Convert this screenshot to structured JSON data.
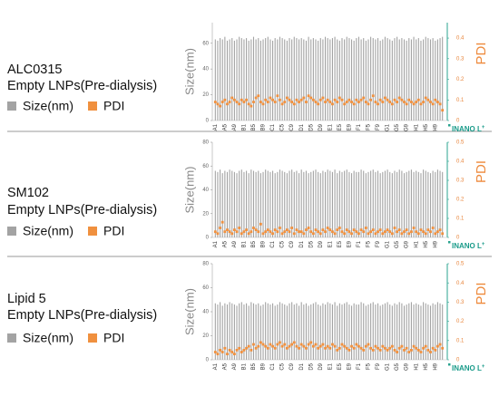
{
  "charts": [
    {
      "type": "bar",
      "title": "ALC0315",
      "subtitle": "Empty LNPs(Pre-dialysis)",
      "y_label": "Size(nm)",
      "y2_label": "PDI",
      "logo": "INANO L",
      "logo_sup": "+",
      "categories": [
        "A1",
        null,
        null,
        null,
        "A5",
        null,
        null,
        null,
        "A9",
        null,
        null,
        null,
        "B1",
        null,
        null,
        null,
        "B5",
        null,
        null,
        null,
        "B9",
        null,
        null,
        null,
        "C1",
        null,
        null,
        null,
        "C5",
        null,
        null,
        null,
        "C9",
        null,
        null,
        null,
        "D1",
        null,
        null,
        null,
        "D5",
        null,
        null,
        null,
        "D9",
        null,
        null,
        null,
        "E1",
        null,
        null,
        null,
        "E5",
        null,
        null,
        null,
        "E9",
        null,
        null,
        null,
        "F1",
        null,
        null,
        null,
        "F5",
        null,
        null,
        null,
        "F9",
        null,
        null,
        null,
        "G1",
        null,
        null,
        null,
        "G5",
        null,
        null,
        null,
        "G9",
        null,
        null,
        null,
        "H1",
        null,
        null,
        null,
        "H5",
        null,
        null,
        null,
        "H9",
        null,
        null,
        null
      ],
      "ylim": [
        0,
        76
      ],
      "yticks": [
        0,
        20,
        40,
        60
      ],
      "y2lim": [
        0,
        0.475
      ],
      "y2ticks": [
        0,
        0.1,
        0.2,
        0.3,
        0.4
      ],
      "series": [
        {
          "name": "Size(nm)",
          "color": "#a3a3a3",
          "values": [
            63,
            62,
            64,
            63,
            65,
            62,
            63,
            64,
            62,
            63,
            65,
            64,
            63,
            64,
            62,
            63,
            65,
            63,
            64,
            62,
            63,
            64,
            65,
            63,
            62,
            64,
            63,
            65,
            64,
            63,
            62,
            64,
            63,
            65,
            64,
            63,
            64,
            63,
            62,
            65,
            63,
            64,
            63,
            62,
            64,
            63,
            65,
            64,
            63,
            64,
            65,
            63,
            62,
            64,
            63,
            65,
            64,
            63,
            62,
            64,
            65,
            63,
            64,
            62,
            63,
            65,
            64,
            63,
            64,
            62,
            63,
            65,
            64,
            63,
            62,
            64,
            65,
            63,
            64,
            63,
            62,
            64,
            63,
            65,
            63,
            64,
            62,
            63,
            65,
            64,
            63,
            64,
            62,
            63,
            64,
            65
          ]
        },
        {
          "name": "PDI",
          "color": "#f0903e",
          "axis": "y2",
          "values": [
            0.09,
            0.08,
            0.07,
            0.09,
            0.1,
            0.08,
            0.09,
            0.11,
            0.1,
            0.09,
            0.08,
            0.1,
            0.09,
            0.1,
            0.08,
            0.07,
            0.09,
            0.11,
            0.12,
            0.09,
            0.08,
            0.1,
            0.09,
            0.11,
            0.1,
            0.09,
            0.12,
            0.1,
            0.08,
            0.09,
            0.11,
            0.1,
            0.09,
            0.08,
            0.1,
            0.09,
            0.1,
            0.11,
            0.09,
            0.12,
            0.11,
            0.1,
            0.09,
            0.08,
            0.1,
            0.11,
            0.09,
            0.1,
            0.09,
            0.08,
            0.1,
            0.09,
            0.11,
            0.1,
            0.08,
            0.09,
            0.1,
            0.09,
            0.08,
            0.1,
            0.09,
            0.1,
            0.11,
            0.09,
            0.08,
            0.1,
            0.12,
            0.09,
            0.08,
            0.1,
            0.09,
            0.11,
            0.1,
            0.09,
            0.08,
            0.1,
            0.09,
            0.11,
            0.1,
            0.09,
            0.08,
            0.1,
            0.09,
            0.08,
            0.09,
            0.1,
            0.08,
            0.09,
            0.11,
            0.1,
            0.09,
            0.08,
            0.1,
            0.09,
            0.08,
            0.05
          ]
        }
      ]
    },
    {
      "type": "bar",
      "title": "SM102",
      "subtitle": "Empty LNPs(Pre-dialysis)",
      "y_label": "Size(nm)",
      "y2_label": "PDI",
      "logo": "INANO L",
      "logo_sup": "+",
      "categories": [
        "A1",
        null,
        null,
        null,
        "A5",
        null,
        null,
        null,
        "A9",
        null,
        null,
        null,
        "B1",
        null,
        null,
        null,
        "B5",
        null,
        null,
        null,
        "B9",
        null,
        null,
        null,
        "C1",
        null,
        null,
        null,
        "C5",
        null,
        null,
        null,
        "C9",
        null,
        null,
        null,
        "D1",
        null,
        null,
        null,
        "D5",
        null,
        null,
        null,
        "D9",
        null,
        null,
        null,
        "E1",
        null,
        null,
        null,
        "E5",
        null,
        null,
        null,
        "E9",
        null,
        null,
        null,
        "F1",
        null,
        null,
        null,
        "F5",
        null,
        null,
        null,
        "F9",
        null,
        null,
        null,
        "G1",
        null,
        null,
        null,
        "G5",
        null,
        null,
        null,
        "G9",
        null,
        null,
        null,
        "H1",
        null,
        null,
        null,
        "H5",
        null,
        null,
        null,
        "H9",
        null,
        null,
        null
      ],
      "ylim": [
        0,
        80
      ],
      "yticks": [
        0,
        20,
        40,
        60,
        80
      ],
      "y2lim": [
        0,
        0.5
      ],
      "y2ticks": [
        0,
        0.1,
        0.2,
        0.3,
        0.4,
        0.5
      ],
      "series": [
        {
          "name": "Size(nm)",
          "color": "#a3a3a3",
          "values": [
            56,
            55,
            57,
            54,
            56,
            55,
            57,
            56,
            55,
            54,
            56,
            57,
            55,
            56,
            54,
            57,
            56,
            55,
            56,
            54,
            55,
            57,
            56,
            55,
            56,
            54,
            55,
            57,
            56,
            55,
            54,
            56,
            57,
            55,
            56,
            54,
            57,
            55,
            56,
            54,
            55,
            56,
            57,
            55,
            54,
            56,
            55,
            57,
            56,
            55,
            57,
            54,
            56,
            55,
            56,
            57,
            55,
            54,
            56,
            55,
            55,
            57,
            56,
            54,
            55,
            56,
            57,
            55,
            56,
            54,
            55,
            56,
            57,
            55,
            54,
            56,
            55,
            57,
            56,
            54,
            55,
            56,
            57,
            55,
            56,
            55,
            54,
            57,
            56,
            55,
            54,
            56,
            55,
            57,
            56,
            55
          ]
        },
        {
          "name": "PDI",
          "color": "#f0903e",
          "axis": "y2",
          "values": [
            0.03,
            0.02,
            0.05,
            0.08,
            0.03,
            0.04,
            0.03,
            0.02,
            0.04,
            0.03,
            0.05,
            0.02,
            0.03,
            0.04,
            0.02,
            0.03,
            0.05,
            0.04,
            0.03,
            0.07,
            0.02,
            0.03,
            0.04,
            0.03,
            0.02,
            0.04,
            0.03,
            0.05,
            0.02,
            0.03,
            0.04,
            0.03,
            0.05,
            0.02,
            0.04,
            0.03,
            0.03,
            0.02,
            0.04,
            0.05,
            0.03,
            0.02,
            0.04,
            0.03,
            0.02,
            0.04,
            0.03,
            0.05,
            0.04,
            0.03,
            0.02,
            0.04,
            0.05,
            0.03,
            0.02,
            0.04,
            0.03,
            0.02,
            0.04,
            0.03,
            0.02,
            0.04,
            0.03,
            0.05,
            0.02,
            0.03,
            0.04,
            0.02,
            0.03,
            0.04,
            0.02,
            0.03,
            0.04,
            0.03,
            0.02,
            0.05,
            0.03,
            0.04,
            0.02,
            0.03,
            0.04,
            0.02,
            0.03,
            0.05,
            0.03,
            0.02,
            0.04,
            0.03,
            0.02,
            0.04,
            0.03,
            0.05,
            0.02,
            0.03,
            0.04,
            0.02
          ]
        }
      ]
    },
    {
      "type": "bar",
      "title": "Lipid 5",
      "subtitle": "Empty LNPs(Pre-dialysis)",
      "y_label": "Size(nm)",
      "y2_label": "PDI",
      "logo": "INANO L",
      "logo_sup": "+",
      "categories": [
        "A1",
        null,
        null,
        null,
        "A5",
        null,
        null,
        null,
        "A9",
        null,
        null,
        null,
        "B1",
        null,
        null,
        null,
        "B5",
        null,
        null,
        null,
        "B9",
        null,
        null,
        null,
        "C1",
        null,
        null,
        null,
        "C5",
        null,
        null,
        null,
        "C9",
        null,
        null,
        null,
        "D1",
        null,
        null,
        null,
        "D5",
        null,
        null,
        null,
        "D9",
        null,
        null,
        null,
        "E1",
        null,
        null,
        null,
        "E5",
        null,
        null,
        null,
        "E9",
        null,
        null,
        null,
        "F1",
        null,
        null,
        null,
        "F5",
        null,
        null,
        null,
        "F9",
        null,
        null,
        null,
        "G1",
        null,
        null,
        null,
        "G5",
        null,
        null,
        null,
        "G9",
        null,
        null,
        null,
        "H1",
        null,
        null,
        null,
        "H5",
        null,
        null,
        null,
        "H9",
        null,
        null,
        null
      ],
      "ylim": [
        0,
        80
      ],
      "yticks": [
        0,
        20,
        40,
        60,
        80
      ],
      "y2lim": [
        0,
        0.5
      ],
      "y2ticks": [
        0,
        0.1,
        0.2,
        0.3,
        0.4,
        0.5
      ],
      "series": [
        {
          "name": "Size(nm)",
          "color": "#a3a3a3",
          "values": [
            47,
            46,
            48,
            45,
            47,
            46,
            48,
            47,
            46,
            45,
            47,
            48,
            46,
            47,
            45,
            48,
            47,
            46,
            47,
            45,
            46,
            48,
            47,
            46,
            47,
            45,
            46,
            48,
            47,
            46,
            45,
            47,
            48,
            46,
            47,
            45,
            48,
            46,
            47,
            45,
            46,
            47,
            48,
            46,
            45,
            47,
            46,
            48,
            47,
            46,
            48,
            45,
            47,
            46,
            47,
            48,
            46,
            45,
            47,
            46,
            46,
            48,
            47,
            45,
            46,
            47,
            48,
            46,
            47,
            45,
            46,
            47,
            48,
            46,
            45,
            47,
            46,
            48,
            47,
            45,
            46,
            47,
            48,
            46,
            47,
            46,
            45,
            48,
            47,
            46,
            45,
            47,
            46,
            48,
            47,
            46
          ]
        },
        {
          "name": "PDI",
          "color": "#f0903e",
          "axis": "y2",
          "values": [
            0.04,
            0.03,
            0.05,
            0.04,
            0.06,
            0.03,
            0.05,
            0.04,
            0.03,
            0.05,
            0.06,
            0.04,
            0.05,
            0.06,
            0.07,
            0.05,
            0.08,
            0.06,
            0.07,
            0.09,
            0.08,
            0.07,
            0.06,
            0.08,
            0.07,
            0.06,
            0.08,
            0.09,
            0.07,
            0.08,
            0.06,
            0.07,
            0.08,
            0.09,
            0.07,
            0.06,
            0.08,
            0.07,
            0.06,
            0.08,
            0.09,
            0.07,
            0.08,
            0.06,
            0.07,
            0.08,
            0.06,
            0.07,
            0.06,
            0.08,
            0.07,
            0.05,
            0.06,
            0.08,
            0.07,
            0.06,
            0.05,
            0.07,
            0.06,
            0.08,
            0.07,
            0.06,
            0.05,
            0.07,
            0.08,
            0.06,
            0.05,
            0.07,
            0.06,
            0.05,
            0.07,
            0.06,
            0.05,
            0.06,
            0.07,
            0.05,
            0.04,
            0.06,
            0.07,
            0.05,
            0.06,
            0.04,
            0.05,
            0.07,
            0.06,
            0.05,
            0.04,
            0.06,
            0.07,
            0.05,
            0.04,
            0.06,
            0.05,
            0.07,
            0.08,
            0.06
          ]
        }
      ]
    }
  ]
}
